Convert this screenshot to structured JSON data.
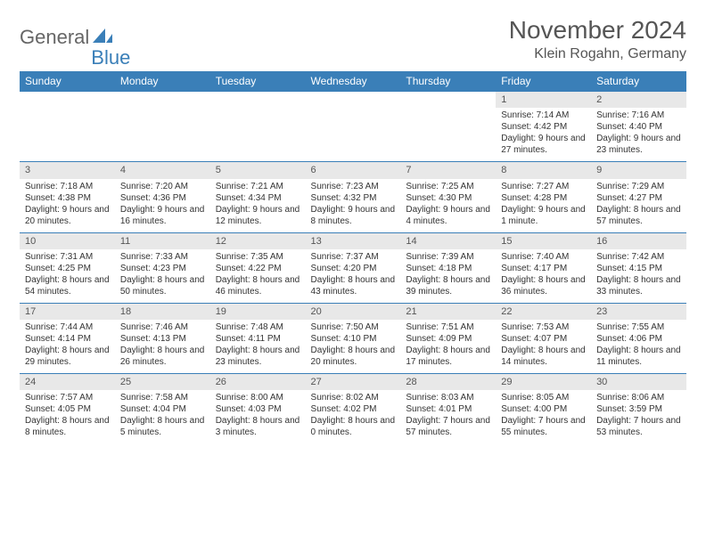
{
  "brand": {
    "text1": "General",
    "text2": "Blue"
  },
  "title": "November 2024",
  "location": "Klein Rogahn, Germany",
  "colors": {
    "accent": "#3a7fb8",
    "header_text": "#ffffff",
    "daynum_bg": "#e8e8e8",
    "text": "#333333",
    "muted": "#555555",
    "background": "#ffffff"
  },
  "dayHeaders": [
    "Sunday",
    "Monday",
    "Tuesday",
    "Wednesday",
    "Thursday",
    "Friday",
    "Saturday"
  ],
  "weeks": [
    [
      null,
      null,
      null,
      null,
      null,
      {
        "n": "1",
        "sr": "7:14 AM",
        "ss": "4:42 PM",
        "dl": "9 hours and 27 minutes."
      },
      {
        "n": "2",
        "sr": "7:16 AM",
        "ss": "4:40 PM",
        "dl": "9 hours and 23 minutes."
      }
    ],
    [
      {
        "n": "3",
        "sr": "7:18 AM",
        "ss": "4:38 PM",
        "dl": "9 hours and 20 minutes."
      },
      {
        "n": "4",
        "sr": "7:20 AM",
        "ss": "4:36 PM",
        "dl": "9 hours and 16 minutes."
      },
      {
        "n": "5",
        "sr": "7:21 AM",
        "ss": "4:34 PM",
        "dl": "9 hours and 12 minutes."
      },
      {
        "n": "6",
        "sr": "7:23 AM",
        "ss": "4:32 PM",
        "dl": "9 hours and 8 minutes."
      },
      {
        "n": "7",
        "sr": "7:25 AM",
        "ss": "4:30 PM",
        "dl": "9 hours and 4 minutes."
      },
      {
        "n": "8",
        "sr": "7:27 AM",
        "ss": "4:28 PM",
        "dl": "9 hours and 1 minute."
      },
      {
        "n": "9",
        "sr": "7:29 AM",
        "ss": "4:27 PM",
        "dl": "8 hours and 57 minutes."
      }
    ],
    [
      {
        "n": "10",
        "sr": "7:31 AM",
        "ss": "4:25 PM",
        "dl": "8 hours and 54 minutes."
      },
      {
        "n": "11",
        "sr": "7:33 AM",
        "ss": "4:23 PM",
        "dl": "8 hours and 50 minutes."
      },
      {
        "n": "12",
        "sr": "7:35 AM",
        "ss": "4:22 PM",
        "dl": "8 hours and 46 minutes."
      },
      {
        "n": "13",
        "sr": "7:37 AM",
        "ss": "4:20 PM",
        "dl": "8 hours and 43 minutes."
      },
      {
        "n": "14",
        "sr": "7:39 AM",
        "ss": "4:18 PM",
        "dl": "8 hours and 39 minutes."
      },
      {
        "n": "15",
        "sr": "7:40 AM",
        "ss": "4:17 PM",
        "dl": "8 hours and 36 minutes."
      },
      {
        "n": "16",
        "sr": "7:42 AM",
        "ss": "4:15 PM",
        "dl": "8 hours and 33 minutes."
      }
    ],
    [
      {
        "n": "17",
        "sr": "7:44 AM",
        "ss": "4:14 PM",
        "dl": "8 hours and 29 minutes."
      },
      {
        "n": "18",
        "sr": "7:46 AM",
        "ss": "4:13 PM",
        "dl": "8 hours and 26 minutes."
      },
      {
        "n": "19",
        "sr": "7:48 AM",
        "ss": "4:11 PM",
        "dl": "8 hours and 23 minutes."
      },
      {
        "n": "20",
        "sr": "7:50 AM",
        "ss": "4:10 PM",
        "dl": "8 hours and 20 minutes."
      },
      {
        "n": "21",
        "sr": "7:51 AM",
        "ss": "4:09 PM",
        "dl": "8 hours and 17 minutes."
      },
      {
        "n": "22",
        "sr": "7:53 AM",
        "ss": "4:07 PM",
        "dl": "8 hours and 14 minutes."
      },
      {
        "n": "23",
        "sr": "7:55 AM",
        "ss": "4:06 PM",
        "dl": "8 hours and 11 minutes."
      }
    ],
    [
      {
        "n": "24",
        "sr": "7:57 AM",
        "ss": "4:05 PM",
        "dl": "8 hours and 8 minutes."
      },
      {
        "n": "25",
        "sr": "7:58 AM",
        "ss": "4:04 PM",
        "dl": "8 hours and 5 minutes."
      },
      {
        "n": "26",
        "sr": "8:00 AM",
        "ss": "4:03 PM",
        "dl": "8 hours and 3 minutes."
      },
      {
        "n": "27",
        "sr": "8:02 AM",
        "ss": "4:02 PM",
        "dl": "8 hours and 0 minutes."
      },
      {
        "n": "28",
        "sr": "8:03 AM",
        "ss": "4:01 PM",
        "dl": "7 hours and 57 minutes."
      },
      {
        "n": "29",
        "sr": "8:05 AM",
        "ss": "4:00 PM",
        "dl": "7 hours and 55 minutes."
      },
      {
        "n": "30",
        "sr": "8:06 AM",
        "ss": "3:59 PM",
        "dl": "7 hours and 53 minutes."
      }
    ]
  ],
  "labels": {
    "sunrise": "Sunrise: ",
    "sunset": "Sunset: ",
    "daylight": "Daylight: "
  }
}
